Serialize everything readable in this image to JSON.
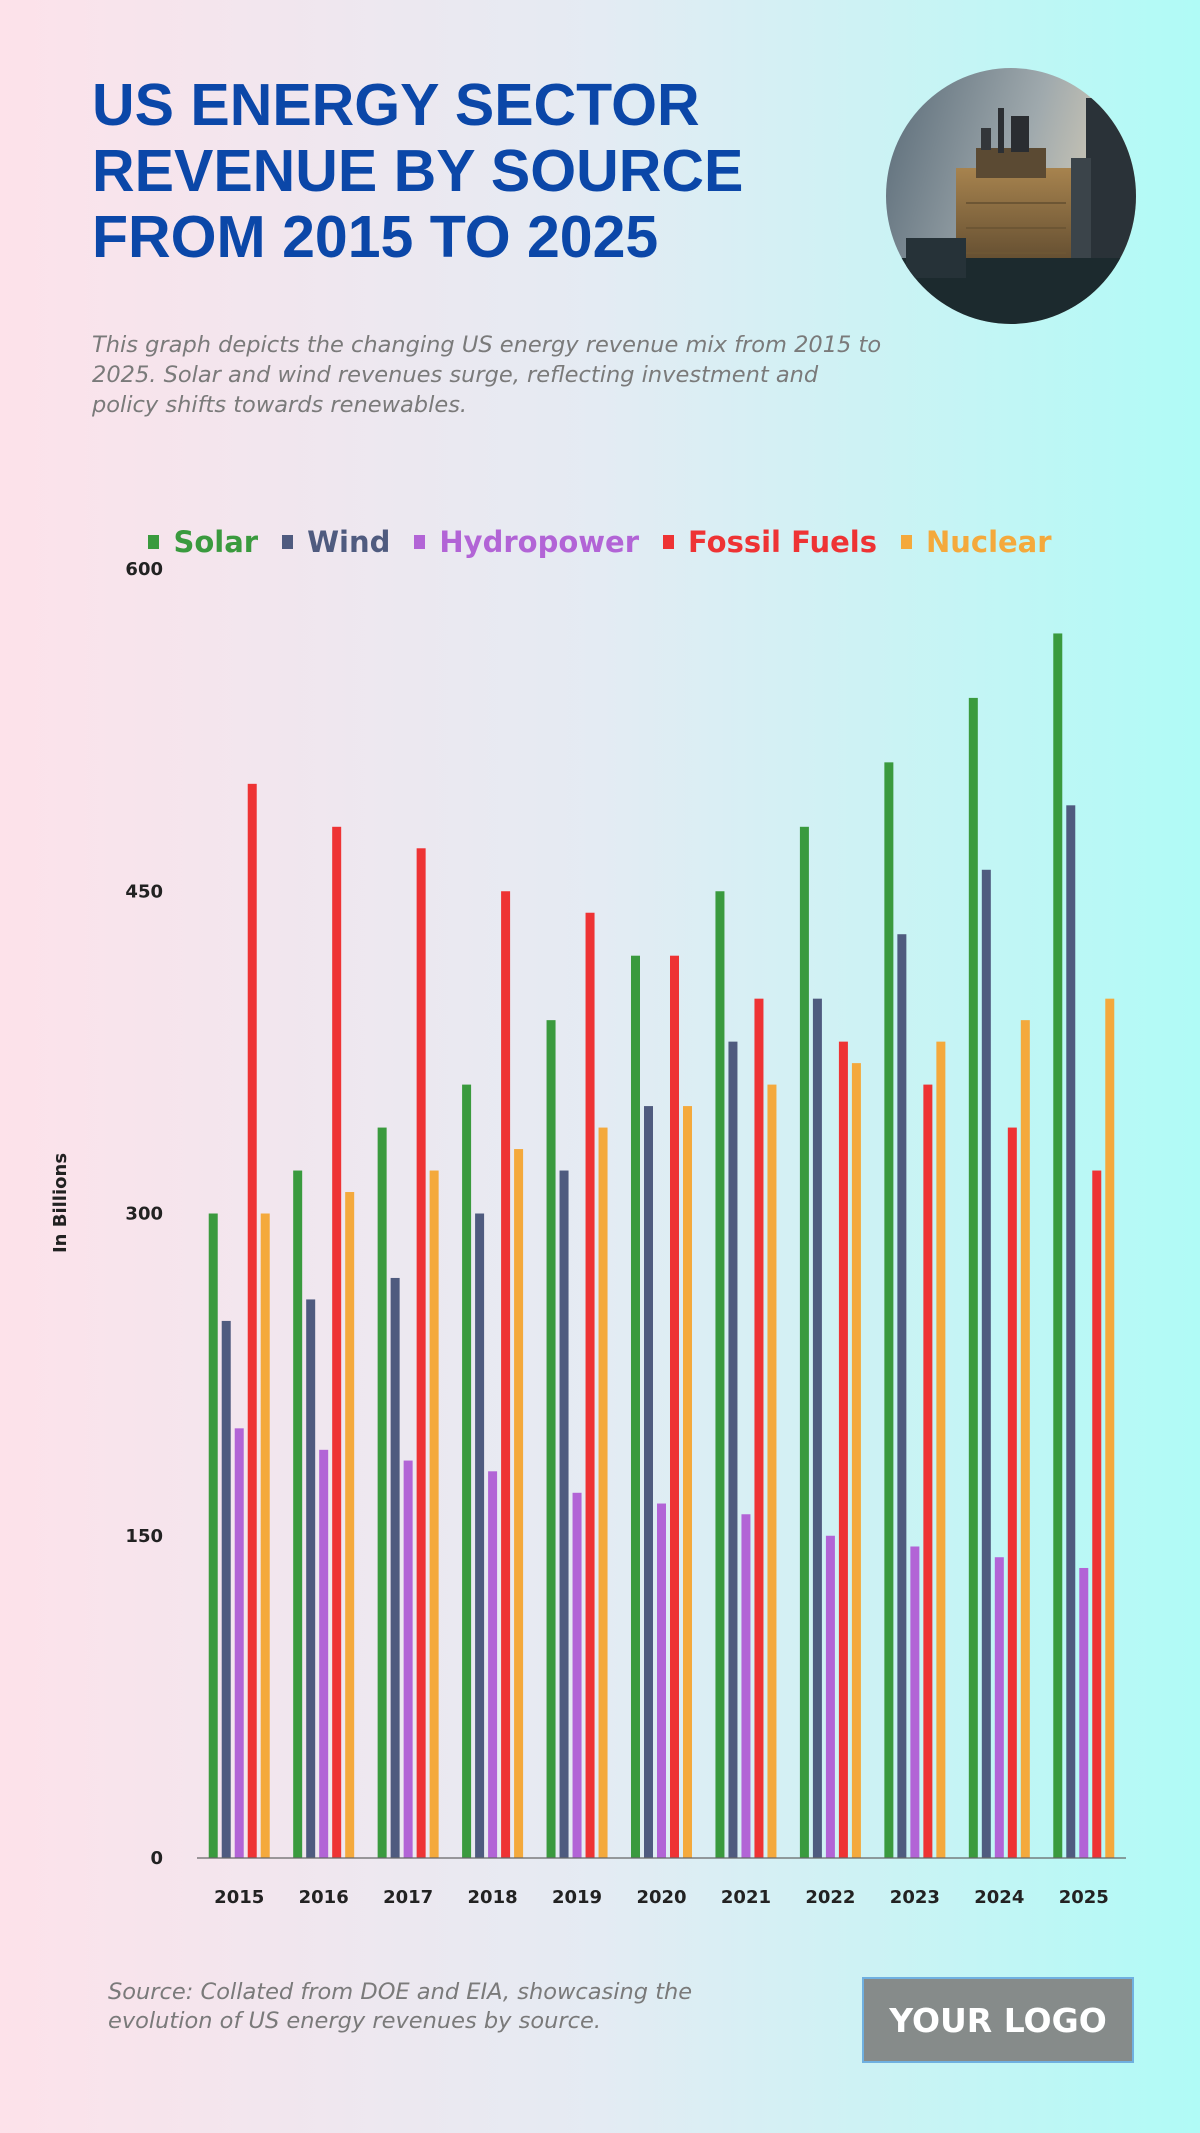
{
  "header": {
    "title": "US ENERGY SECTOR REVENUE BY SOURCE FROM 2015 TO 2025",
    "subtitle": "This graph depicts the changing US energy revenue mix from 2015 to 2025. Solar and wind revenues surge, reflecting investment and policy shifts towards renewables."
  },
  "footer": {
    "source": "Source: Collated from DOE and EIA, showcasing the evolution of US energy revenues by source.",
    "logo": "YOUR LOGO"
  },
  "chart_data": {
    "type": "bar",
    "title": "",
    "xlabel": "",
    "ylabel": "In Billions",
    "ylim": [
      0,
      600
    ],
    "yticks": [
      0,
      150,
      300,
      450,
      600
    ],
    "grid": false,
    "legend_position": "top",
    "categories": [
      "2015",
      "2016",
      "2017",
      "2018",
      "2019",
      "2020",
      "2021",
      "2022",
      "2023",
      "2024",
      "2025"
    ],
    "series": [
      {
        "name": "Solar",
        "color": "#3a9a3e",
        "values": [
          300,
          320,
          340,
          360,
          390,
          420,
          450,
          480,
          510,
          540,
          570
        ]
      },
      {
        "name": "Wind",
        "color": "#4f5b7f",
        "values": [
          250,
          260,
          270,
          300,
          320,
          350,
          380,
          400,
          430,
          460,
          490
        ]
      },
      {
        "name": "Hydropower",
        "color": "#b264d6",
        "values": [
          200,
          190,
          185,
          180,
          170,
          165,
          160,
          150,
          145,
          140,
          135
        ]
      },
      {
        "name": "Fossil Fuels",
        "color": "#ee3334",
        "values": [
          500,
          480,
          470,
          450,
          440,
          420,
          400,
          380,
          360,
          340,
          320
        ]
      },
      {
        "name": "Nuclear",
        "color": "#f4a93c",
        "values": [
          300,
          310,
          320,
          330,
          340,
          350,
          360,
          370,
          380,
          390,
          400
        ]
      }
    ]
  }
}
